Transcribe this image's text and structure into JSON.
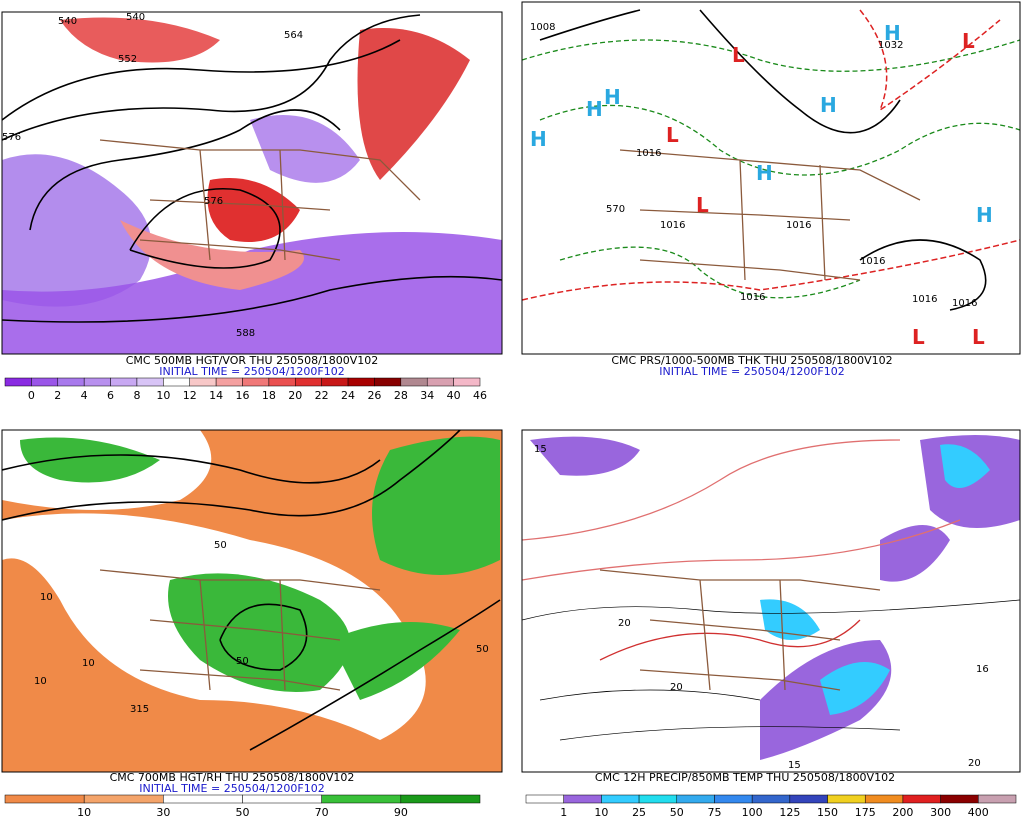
{
  "panels": [
    {
      "title": "CMC 500MB HGT/VOR THU 250508/1800V102",
      "initial_time": "INITIAL TIME = 250504/1200F102",
      "colorbar": {
        "colors": [
          "#8a2be2",
          "#9a55e8",
          "#a879ec",
          "#b890ee",
          "#c8a8f2",
          "#d8c4f6",
          "#ffffff",
          "#f8c8c8",
          "#f4a0a0",
          "#f07878",
          "#ea5050",
          "#e03030",
          "#c81818",
          "#a80000",
          "#880000",
          "#b08890",
          "#d8a0b0",
          "#f4b8c8"
        ],
        "labels": [
          0,
          2,
          4,
          6,
          8,
          10,
          12,
          14,
          16,
          18,
          20,
          22,
          24,
          26,
          28,
          34,
          40,
          46
        ]
      },
      "contour_labels": [
        "540",
        "540",
        "552",
        "564",
        "576",
        "576",
        "588"
      ]
    },
    {
      "title": "CMC PRS/1000-500MB THK THU 250508/1800V102",
      "initial_time": "INITIAL TIME = 250504/1200F102",
      "contour_labels": [
        "1008",
        "1032",
        "1016",
        "1016",
        "1016",
        "1016",
        "1016",
        "1016",
        "1016",
        "570"
      ],
      "pressure_centers": [
        "H",
        "H",
        "H",
        "H",
        "H",
        "H",
        "H",
        "L",
        "L",
        "L",
        "L",
        "L",
        "L"
      ]
    },
    {
      "title": "CMC 700MB HGT/RH THU 250508/1800V102",
      "initial_time": "INITIAL TIME = 250504/1200F102",
      "colorbar": {
        "colors": [
          "#f08a48",
          "#f4a46a",
          "#ffffff",
          "#ffffff",
          "#39c039",
          "#1a9a1a"
        ],
        "labels": [
          10,
          30,
          50,
          70,
          90
        ]
      },
      "contour_labels": [
        "10",
        "10",
        "50",
        "50",
        "50",
        "315",
        "10"
      ]
    },
    {
      "title": "CMC 12H PRECIP/850MB TEMP THU 250508/1800V102",
      "colorbar": {
        "colors": [
          "#ffffff",
          "#9966dd",
          "#33ccff",
          "#22ddee",
          "#33aaee",
          "#3388ee",
          "#3366cc",
          "#3344bb",
          "#f0d020",
          "#f08c20",
          "#e02020",
          "#8a0000",
          "#c8a0b0"
        ],
        "labels": [
          1,
          10,
          25,
          50,
          75,
          100,
          125,
          150,
          175,
          200,
          300,
          400
        ]
      },
      "contour_labels": [
        "15",
        "20",
        "20",
        "15",
        "16",
        "20"
      ]
    }
  ]
}
